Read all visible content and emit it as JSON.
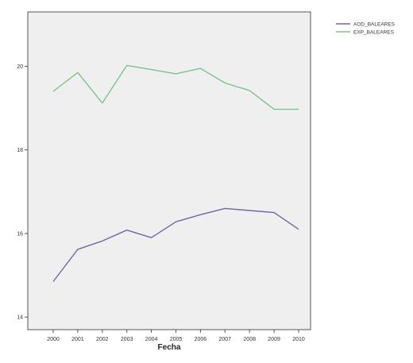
{
  "chart_data": {
    "type": "line",
    "title": "",
    "xlabel": "Fecha",
    "ylabel": "",
    "x": [
      "2000",
      "2001",
      "2002",
      "2003",
      "2004",
      "2005",
      "2006",
      "2007",
      "2008",
      "2009",
      "2010"
    ],
    "yticks": [
      "14",
      "16",
      "18",
      "20"
    ],
    "ytick_values": [
      14,
      16,
      18,
      20
    ],
    "ylim": [
      13.7,
      21.3
    ],
    "grid": false,
    "legend_position": "top-right, outside plot",
    "series": [
      {
        "name": "AOD_BALEARES",
        "color": "#6a6aa8",
        "values": [
          14.85,
          15.62,
          15.82,
          16.08,
          15.9,
          16.28,
          16.45,
          16.6,
          16.55,
          16.5,
          16.1
        ]
      },
      {
        "name": "EXP_BALEARES",
        "color": "#7dc48a",
        "values": [
          19.4,
          19.85,
          19.12,
          20.02,
          19.92,
          19.82,
          19.95,
          19.6,
          19.42,
          18.97,
          18.97
        ]
      }
    ],
    "plot_background": "#efefef"
  }
}
